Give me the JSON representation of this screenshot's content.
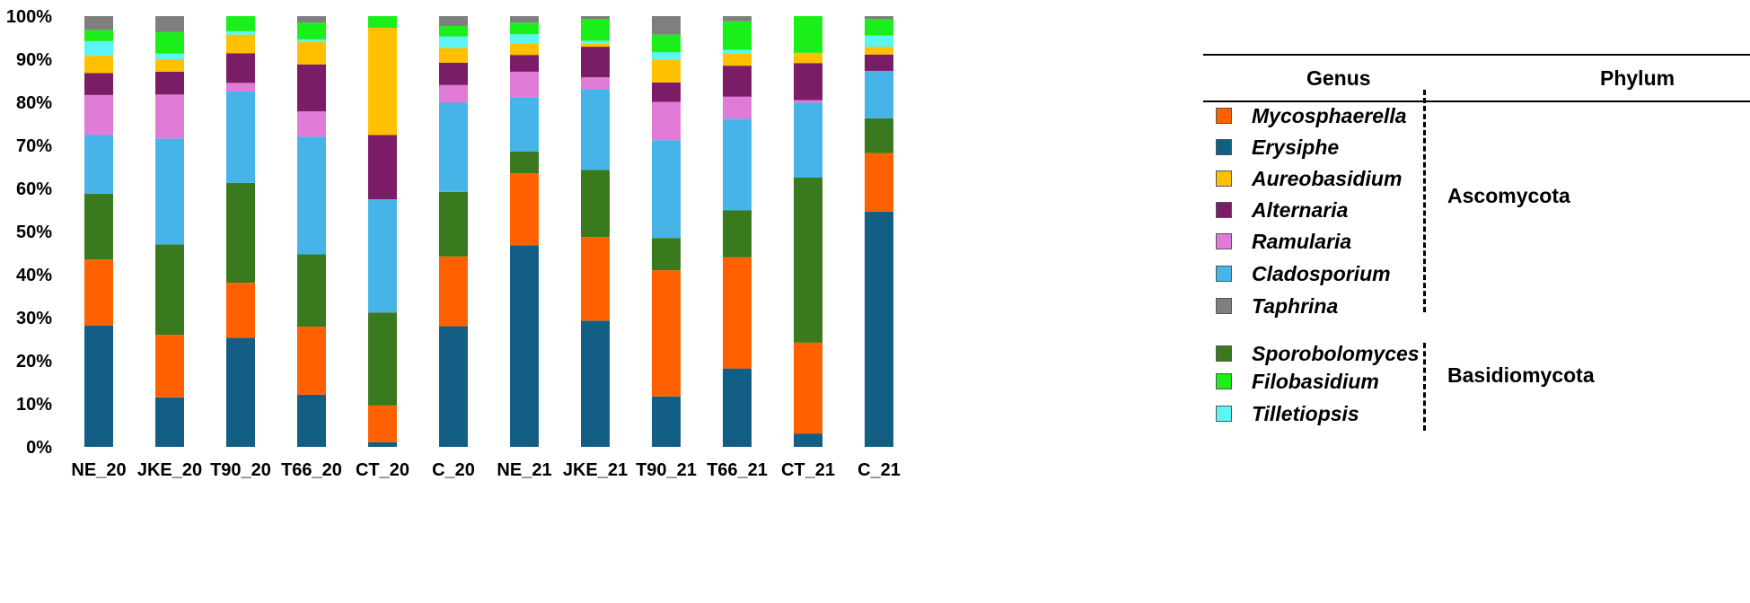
{
  "chart_data": {
    "type": "bar",
    "stacked": true,
    "categories": [
      "NE_20",
      "JKE_20",
      "T90_20",
      "T66_20",
      "CT_20",
      "C_20",
      "NE_21",
      "JKE_21",
      "T90_21",
      "T66_21",
      "CT_21",
      "C_21"
    ],
    "y_ticks": [
      "0%",
      "10%",
      "20%",
      "30%",
      "40%",
      "50%",
      "60%",
      "70%",
      "80%",
      "90%",
      "100%"
    ],
    "ylim": [
      0,
      100
    ],
    "grid": false,
    "legend_position": "right",
    "series": [
      {
        "name": "Erysiphe",
        "color": "#125e85",
        "values": [
          28.2,
          11.5,
          25.3,
          12.1,
          1.1,
          28.0,
          46.8,
          29.3,
          11.7,
          18.2,
          3.1,
          54.6
        ]
      },
      {
        "name": "Mycosphaerella",
        "color": "#ff6100",
        "values": [
          15.3,
          14.5,
          12.8,
          15.8,
          8.5,
          16.2,
          16.7,
          19.4,
          29.3,
          25.8,
          21.1,
          13.6
        ]
      },
      {
        "name": "Sporobolomyces",
        "color": "#3a7a1e",
        "values": [
          15.3,
          21.0,
          23.2,
          16.8,
          21.6,
          15.0,
          5.1,
          15.6,
          7.5,
          10.9,
          38.3,
          8.1
        ]
      },
      {
        "name": "Cladosporium",
        "color": "#46b4e6",
        "values": [
          13.6,
          24.6,
          21.2,
          27.3,
          26.3,
          20.7,
          12.6,
          18.8,
          22.7,
          21.3,
          17.4,
          11.0
        ]
      },
      {
        "name": "Ramularia",
        "color": "#e07cd7",
        "values": [
          9.3,
          10.2,
          2.0,
          5.9,
          0.0,
          4.1,
          5.9,
          2.7,
          8.9,
          5.1,
          0.6,
          0.0
        ]
      },
      {
        "name": "Alternaria",
        "color": "#7b1c66",
        "values": [
          5.1,
          5.3,
          6.9,
          10.9,
          14.9,
          5.2,
          3.9,
          7.1,
          4.5,
          7.2,
          8.6,
          3.8
        ]
      },
      {
        "name": "Aureobasidium",
        "color": "#ffc000",
        "values": [
          4.0,
          2.9,
          4.3,
          5.3,
          24.9,
          3.4,
          2.7,
          0.7,
          5.2,
          2.9,
          2.4,
          1.8
        ]
      },
      {
        "name": "Tilletiopsis",
        "color": "#5cf5f5",
        "values": [
          3.4,
          1.3,
          0.8,
          0.5,
          0.0,
          2.7,
          2.1,
          0.7,
          1.8,
          0.8,
          0.0,
          2.6
        ]
      },
      {
        "name": "Filobasidium",
        "color": "#1aef1a",
        "values": [
          2.6,
          5.0,
          3.5,
          3.9,
          2.7,
          2.4,
          2.7,
          5.0,
          4.1,
          6.6,
          8.5,
          3.8
        ]
      },
      {
        "name": "Taphrina",
        "color": "#7f7f7f",
        "values": [
          3.2,
          3.7,
          0.0,
          1.5,
          0.0,
          2.3,
          1.5,
          0.7,
          4.3,
          1.2,
          0.0,
          0.7
        ]
      }
    ]
  },
  "legend": {
    "genus_header": "Genus",
    "phylum_header": "Phylum",
    "items": [
      {
        "label": "Mycosphaerella",
        "color": "#ff6100"
      },
      {
        "label": "Erysiphe",
        "color": "#125e85"
      },
      {
        "label": "Aureobasidium",
        "color": "#ffc000"
      },
      {
        "label": "Alternaria",
        "color": "#7b1c66"
      },
      {
        "label": "Ramularia",
        "color": "#e07cd7"
      },
      {
        "label": "Cladosporium",
        "color": "#46b4e6"
      },
      {
        "label": "Taphrina",
        "color": "#7f7f7f"
      },
      {
        "label": "Sporobolomyces",
        "color": "#3a7a1e"
      },
      {
        "label": "Filobasidium",
        "color": "#1aef1a"
      },
      {
        "label": "Tilletiopsis",
        "color": "#5cf5f5"
      }
    ],
    "phylum_groups": [
      "Ascomycota",
      "Basidiomycota"
    ]
  }
}
